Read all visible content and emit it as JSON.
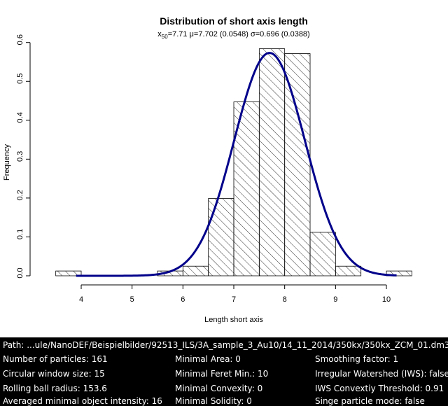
{
  "chart_data": {
    "type": "bar",
    "title": "Distribution of short axis length",
    "subtitle": {
      "x50_label": "x",
      "x50_sub": "50",
      "x50_rest": "=7.71 μ=7.702 (0.0548) σ=0.696 (0.0388)"
    },
    "xlabel": "Length short axis",
    "ylabel": "Frequency",
    "xlim": [
      3.6,
      10.4
    ],
    "ylim": [
      0,
      0.6
    ],
    "xticks": [
      4,
      5,
      6,
      7,
      8,
      9,
      10
    ],
    "yticks": [
      0.0,
      0.1,
      0.2,
      0.3,
      0.4,
      0.5,
      0.6
    ],
    "bars": [
      {
        "x0": 3.5,
        "x1": 4.0,
        "value": 0.0124
      },
      {
        "x0": 5.5,
        "x1": 6.0,
        "value": 0.0124
      },
      {
        "x0": 6.0,
        "x1": 6.5,
        "value": 0.0248
      },
      {
        "x0": 6.5,
        "x1": 7.0,
        "value": 0.1988
      },
      {
        "x0": 7.0,
        "x1": 7.5,
        "value": 0.4472
      },
      {
        "x0": 7.5,
        "x1": 8.0,
        "value": 0.5839
      },
      {
        "x0": 8.0,
        "x1": 8.5,
        "value": 0.5714
      },
      {
        "x0": 8.5,
        "x1": 9.0,
        "value": 0.1118
      },
      {
        "x0": 9.0,
        "x1": 9.5,
        "value": 0.0248
      },
      {
        "x0": 10.0,
        "x1": 10.5,
        "value": 0.0124
      }
    ],
    "fit_curve": {
      "type": "normal",
      "mu": 7.702,
      "sigma": 0.696,
      "x_range": [
        3.9,
        10.2
      ],
      "color": "#00008B"
    },
    "bar_fill": "hatched"
  },
  "info": {
    "path": "Path: ...ule/NanoDEF/Beispielbilder/92513_ILS/3A_sample_3_Au10/14_11_2014/350kx/350kx_ZCM_01.dm3",
    "col1": [
      "Number of particles: 161",
      "Circular window size: 15",
      "Rolling ball radius: 153.6",
      "Averaged minimal object intensity: 16"
    ],
    "col2": [
      "Minimal Area: 0",
      "Minimal Feret Min.: 10",
      "Minimal Convexity: 0",
      "Minimal Solidity: 0"
    ],
    "col3": [
      "Smoothing factor: 1",
      "Irregular Watershed (IWS): false",
      "IWS Convextiy Threshold: 0.91",
      "Singe particle mode: false"
    ]
  }
}
